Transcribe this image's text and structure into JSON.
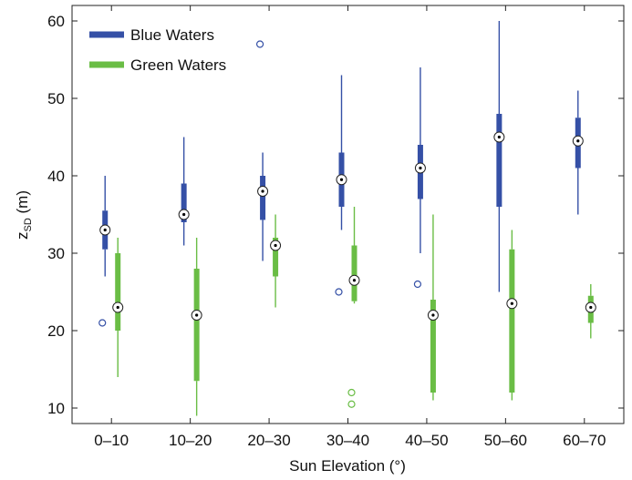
{
  "chart_data": {
    "type": "box",
    "x_label": "Sun Elevation (°)",
    "y_label": {
      "main": "z",
      "subscript": "SD",
      "suffix": " (m)"
    },
    "ylim": [
      8,
      62
    ],
    "y_ticks": [
      10,
      20,
      30,
      40,
      50,
      60
    ],
    "grid": false,
    "legend_position": "top-left",
    "categories": [
      "0–10",
      "10–20",
      "20–30",
      "30–40",
      "40–50",
      "50–60",
      "60–70"
    ],
    "series": [
      {
        "name": "Blue Waters",
        "color": "#3550a6",
        "boxes": [
          {
            "min": 27,
            "q1": 30.5,
            "median": 33,
            "q3": 35.5,
            "max": 40,
            "outliers": [
              21
            ]
          },
          {
            "min": 31,
            "q1": 34,
            "median": 35,
            "q3": 39,
            "max": 45,
            "outliers": []
          },
          {
            "min": 29,
            "q1": 34.3,
            "median": 38,
            "q3": 40,
            "max": 43,
            "outliers": [
              57
            ]
          },
          {
            "min": 33,
            "q1": 36,
            "median": 39.5,
            "q3": 43,
            "max": 53,
            "outliers": [
              25
            ]
          },
          {
            "min": 30,
            "q1": 37,
            "median": 41,
            "q3": 44,
            "max": 54,
            "outliers": [
              26
            ]
          },
          {
            "min": 25,
            "q1": 36,
            "median": 45,
            "q3": 48,
            "max": 60,
            "outliers": []
          },
          {
            "min": 35,
            "q1": 41,
            "median": 44.5,
            "q3": 47.5,
            "max": 51,
            "outliers": []
          }
        ]
      },
      {
        "name": "Green Waters",
        "color": "#6abd45",
        "boxes": [
          {
            "min": 14,
            "q1": 20,
            "median": 23,
            "q3": 30,
            "max": 32,
            "outliers": []
          },
          {
            "min": 9,
            "q1": 13.5,
            "median": 22,
            "q3": 28,
            "max": 32,
            "outliers": []
          },
          {
            "min": 23,
            "q1": 27,
            "median": 31,
            "q3": 32,
            "max": 35,
            "outliers": []
          },
          {
            "min": 23.5,
            "q1": 23.8,
            "median": 26.5,
            "q3": 31,
            "max": 36,
            "outliers": [
              12,
              10.5
            ]
          },
          {
            "min": 11,
            "q1": 12,
            "median": 22,
            "q3": 24,
            "max": 35,
            "outliers": []
          },
          {
            "min": 11,
            "q1": 12,
            "median": 23.5,
            "q3": 30.5,
            "max": 33,
            "outliers": []
          },
          {
            "min": 19,
            "q1": 21,
            "median": 23,
            "q3": 24.5,
            "max": 26,
            "outliers": []
          }
        ]
      }
    ]
  }
}
